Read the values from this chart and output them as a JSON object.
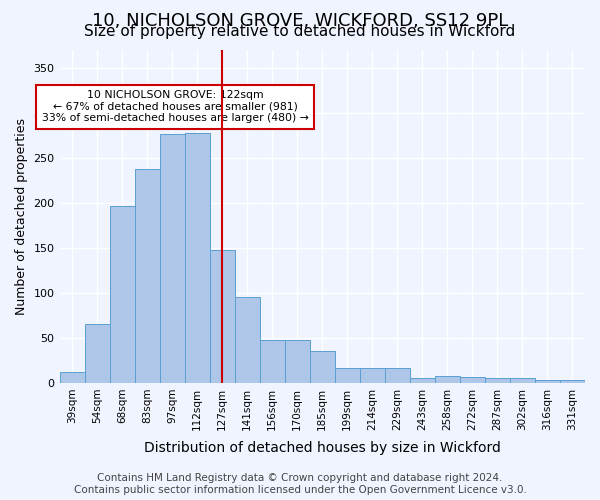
{
  "title1": "10, NICHOLSON GROVE, WICKFORD, SS12 9PL",
  "title2": "Size of property relative to detached houses in Wickford",
  "xlabel": "Distribution of detached houses by size in Wickford",
  "ylabel": "Number of detached properties",
  "categories": [
    "39sqm",
    "54sqm",
    "68sqm",
    "83sqm",
    "97sqm",
    "112sqm",
    "127sqm",
    "141sqm",
    "156sqm",
    "170sqm",
    "185sqm",
    "199sqm",
    "214sqm",
    "229sqm",
    "243sqm",
    "258sqm",
    "272sqm",
    "287sqm",
    "302sqm",
    "316sqm",
    "331sqm"
  ],
  "values": [
    12,
    65,
    197,
    238,
    277,
    278,
    148,
    95,
    48,
    48,
    35,
    17,
    17,
    17,
    5,
    8,
    7,
    5,
    5,
    3,
    3
  ],
  "highlight_index": 5,
  "highlight_value": 290,
  "bar_color": "#aec6e8",
  "bar_edge_color": "#5a9fd4",
  "highlight_line_color": "#cc0000",
  "annotation_text": "10 NICHOLSON GROVE: 122sqm\n← 67% of detached houses are smaller (981)\n33% of semi-detached houses are larger (480) →",
  "annotation_box_color": "#ffffff",
  "annotation_box_edge": "#cc0000",
  "ylim": [
    0,
    370
  ],
  "yticks": [
    0,
    50,
    100,
    150,
    200,
    250,
    300,
    350
  ],
  "footer": "Contains HM Land Registry data © Crown copyright and database right 2024.\nContains public sector information licensed under the Open Government Licence v3.0.",
  "bg_color": "#f0f4ff",
  "grid_color": "#ffffff",
  "title1_fontsize": 13,
  "title2_fontsize": 11,
  "xlabel_fontsize": 10,
  "ylabel_fontsize": 9,
  "footer_fontsize": 7.5
}
